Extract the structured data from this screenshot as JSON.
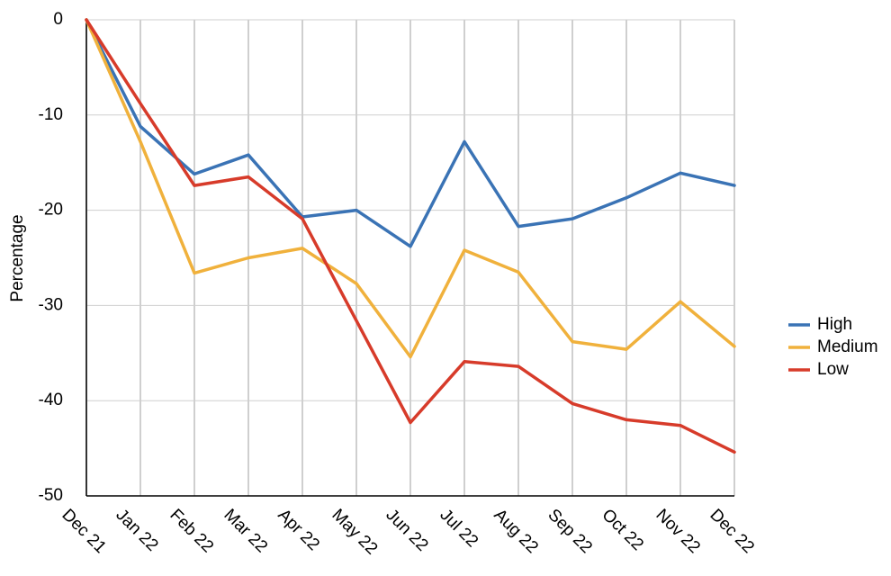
{
  "chart_data": {
    "type": "line",
    "title": "",
    "xlabel": "",
    "ylabel": "Percentage",
    "categories": [
      "Dec 21",
      "Jan 22",
      "Feb 22",
      "Mar 22",
      "Apr 22",
      "May 22",
      "Jun 22",
      "Jul 22",
      "Aug 22",
      "Sep 22",
      "Oct 22",
      "Nov 22",
      "Dec 22"
    ],
    "ylim": [
      -50,
      0
    ],
    "yticks": [
      0,
      -10,
      -20,
      -30,
      -40,
      -50
    ],
    "grid": true,
    "legend_position": "right",
    "series": [
      {
        "name": "High",
        "color": "#3a73b5",
        "values": [
          0,
          -11.2,
          -16.2,
          -14.2,
          -20.7,
          -20.0,
          -23.8,
          -12.8,
          -21.7,
          -20.9,
          -18.7,
          -16.1,
          -17.4
        ]
      },
      {
        "name": "Medium",
        "color": "#f0b13c",
        "values": [
          0,
          -12.8,
          -26.6,
          -25.0,
          -24.0,
          -27.7,
          -35.4,
          -24.2,
          -26.5,
          -33.8,
          -34.6,
          -29.6,
          -34.3
        ]
      },
      {
        "name": "Low",
        "color": "#d73b2a",
        "values": [
          0,
          -8.8,
          -17.4,
          -16.5,
          -20.9,
          -31.6,
          -42.3,
          -35.9,
          -36.4,
          -40.3,
          -42.0,
          -42.6,
          -45.4
        ]
      }
    ]
  }
}
